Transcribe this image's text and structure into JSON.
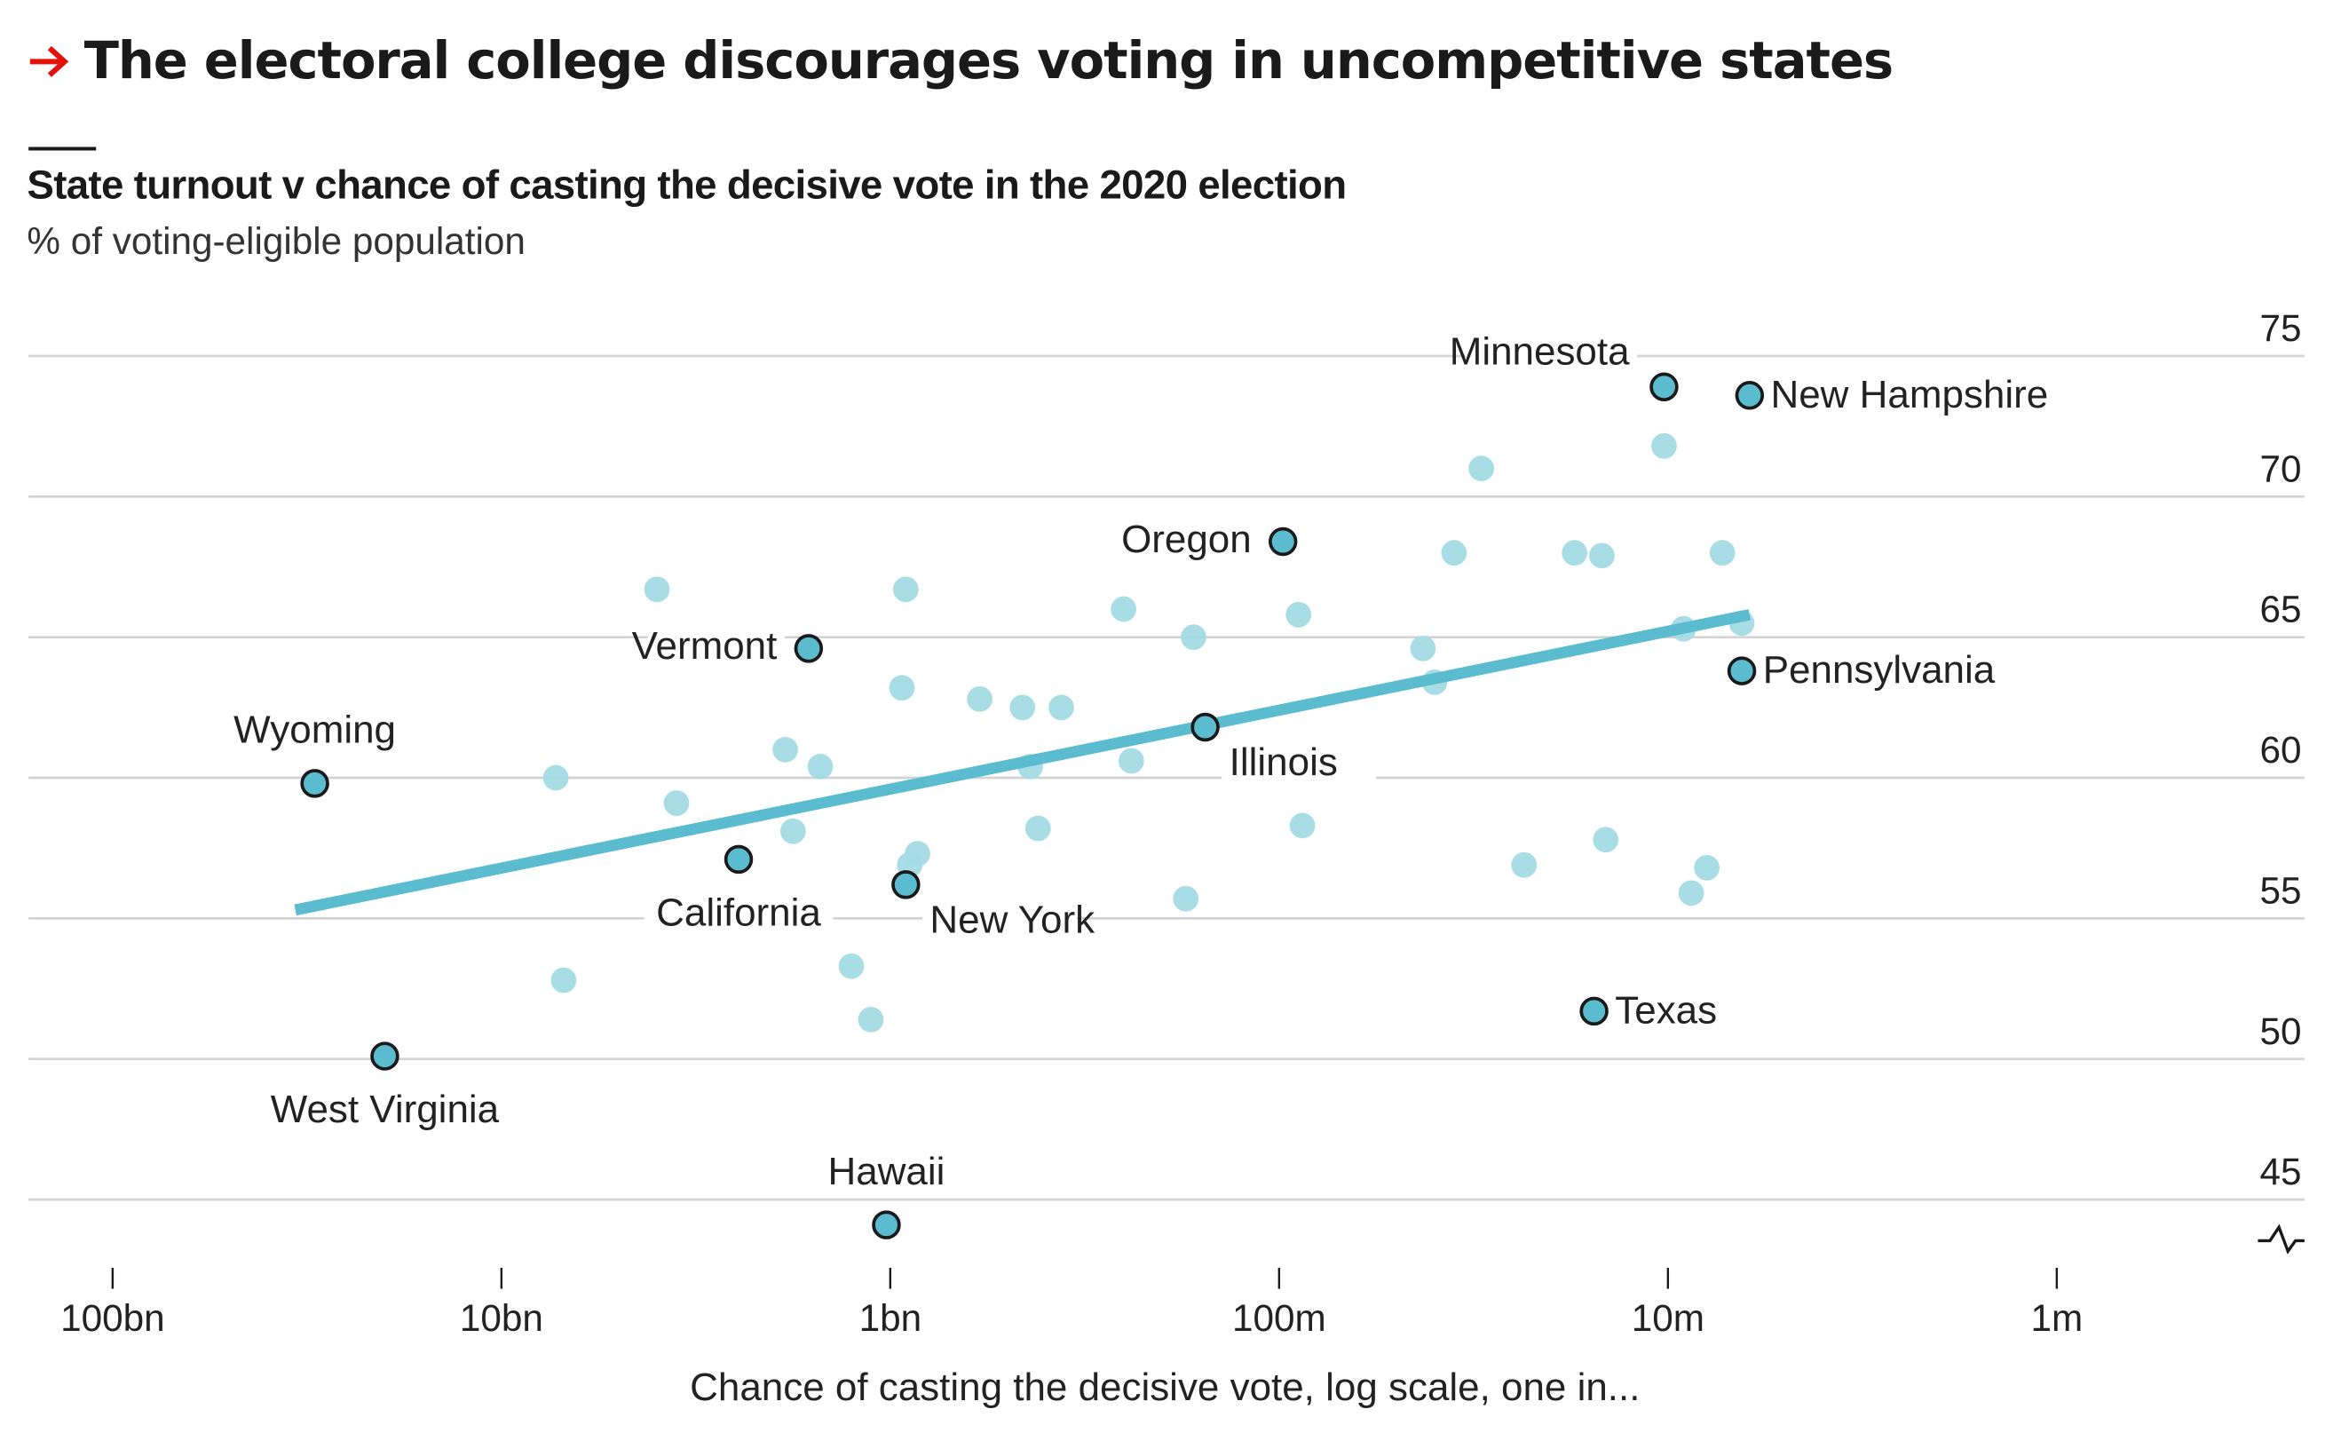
{
  "header": {
    "arrow_icon": "right-arrow-icon",
    "arrow_color": "#e3120b",
    "title": "The electoral college discourages voting in uncompetitive states",
    "subtitle": "State turnout v chance of casting the decisive vote in the 2020 election",
    "unit": "% of voting-eligible population"
  },
  "colors": {
    "highlight_dot": "#5bbccf",
    "other_dot": "#a3dbe5",
    "trend_line": "#5bbccf",
    "dot_outline": "#1a1a1a",
    "gridline": "#d3d3d3"
  },
  "chart_data": {
    "type": "scatter",
    "title": "State turnout v chance of casting the decisive vote in the 2020 election",
    "xlabel": "Chance of casting the decisive vote, log scale, one in...",
    "ylabel": "% of voting-eligible population",
    "x_scale": "log10 of odds (one in N), reversed: larger N on left",
    "xlim_log10": [
      11,
      5.7
    ],
    "ylim": [
      43.5,
      75
    ],
    "x_ticks": [
      {
        "log10": 11,
        "label": "100bn"
      },
      {
        "log10": 10,
        "label": "10bn"
      },
      {
        "log10": 9,
        "label": "1bn"
      },
      {
        "log10": 8,
        "label": "100m"
      },
      {
        "log10": 7,
        "label": "10m"
      },
      {
        "log10": 6,
        "label": "1m"
      }
    ],
    "y_ticks": [
      75,
      70,
      65,
      60,
      55,
      50,
      45
    ],
    "y_axis_break": true,
    "grid": true,
    "trend_line": {
      "from": {
        "log10": 10.53,
        "y": 55.3
      },
      "to": {
        "log10": 6.79,
        "y": 65.8
      }
    },
    "labelled_states": [
      {
        "name": "Wyoming",
        "log10": 10.48,
        "y": 59.8,
        "label_pos": "above"
      },
      {
        "name": "West Virginia",
        "log10": 10.3,
        "y": 50.1,
        "label_pos": "below"
      },
      {
        "name": "Vermont",
        "log10": 9.21,
        "y": 64.6,
        "label_pos": "left"
      },
      {
        "name": "California",
        "log10": 9.39,
        "y": 57.1,
        "label_pos": "below"
      },
      {
        "name": "New York",
        "log10": 8.96,
        "y": 56.2,
        "label_pos": "below-right"
      },
      {
        "name": "Hawaii",
        "log10": 9.01,
        "y": 44.1,
        "label_pos": "above"
      },
      {
        "name": "Illinois",
        "log10": 8.19,
        "y": 61.8,
        "label_pos": "below-right"
      },
      {
        "name": "Oregon",
        "log10": 7.99,
        "y": 68.4,
        "label_pos": "left"
      },
      {
        "name": "Minnesota",
        "log10": 7.01,
        "y": 73.9,
        "label_pos": "above-left"
      },
      {
        "name": "New Hampshire",
        "log10": 6.79,
        "y": 73.6,
        "label_pos": "right"
      },
      {
        "name": "Pennsylvania",
        "log10": 6.81,
        "y": 63.8,
        "label_pos": "right"
      },
      {
        "name": "Texas",
        "log10": 7.19,
        "y": 51.7,
        "label_pos": "right"
      }
    ],
    "other_states": [
      {
        "log10": 9.86,
        "y": 60.0
      },
      {
        "log10": 9.84,
        "y": 52.8
      },
      {
        "log10": 9.6,
        "y": 66.7
      },
      {
        "log10": 9.55,
        "y": 59.1
      },
      {
        "log10": 9.27,
        "y": 61.0
      },
      {
        "log10": 9.25,
        "y": 58.1
      },
      {
        "log10": 9.18,
        "y": 60.4
      },
      {
        "log10": 9.1,
        "y": 53.3
      },
      {
        "log10": 9.05,
        "y": 51.4
      },
      {
        "log10": 8.96,
        "y": 66.7
      },
      {
        "log10": 8.97,
        "y": 63.2
      },
      {
        "log10": 8.95,
        "y": 56.9
      },
      {
        "log10": 8.93,
        "y": 57.3
      },
      {
        "log10": 8.77,
        "y": 62.8
      },
      {
        "log10": 8.66,
        "y": 62.5
      },
      {
        "log10": 8.64,
        "y": 60.4
      },
      {
        "log10": 8.62,
        "y": 58.2
      },
      {
        "log10": 8.56,
        "y": 62.5
      },
      {
        "log10": 8.4,
        "y": 66.0
      },
      {
        "log10": 8.38,
        "y": 60.6
      },
      {
        "log10": 8.22,
        "y": 65.0
      },
      {
        "log10": 8.24,
        "y": 55.7
      },
      {
        "log10": 7.95,
        "y": 65.8
      },
      {
        "log10": 7.94,
        "y": 58.3
      },
      {
        "log10": 7.63,
        "y": 64.6
      },
      {
        "log10": 7.6,
        "y": 63.4
      },
      {
        "log10": 7.55,
        "y": 68.0
      },
      {
        "log10": 7.48,
        "y": 71.0
      },
      {
        "log10": 7.37,
        "y": 56.9
      },
      {
        "log10": 7.24,
        "y": 68.0
      },
      {
        "log10": 7.17,
        "y": 67.9
      },
      {
        "log10": 7.16,
        "y": 57.8
      },
      {
        "log10": 7.01,
        "y": 71.8
      },
      {
        "log10": 6.96,
        "y": 65.3
      },
      {
        "log10": 6.94,
        "y": 55.9
      },
      {
        "log10": 6.9,
        "y": 56.8
      },
      {
        "log10": 6.86,
        "y": 68.0
      },
      {
        "log10": 6.81,
        "y": 65.5
      }
    ]
  }
}
